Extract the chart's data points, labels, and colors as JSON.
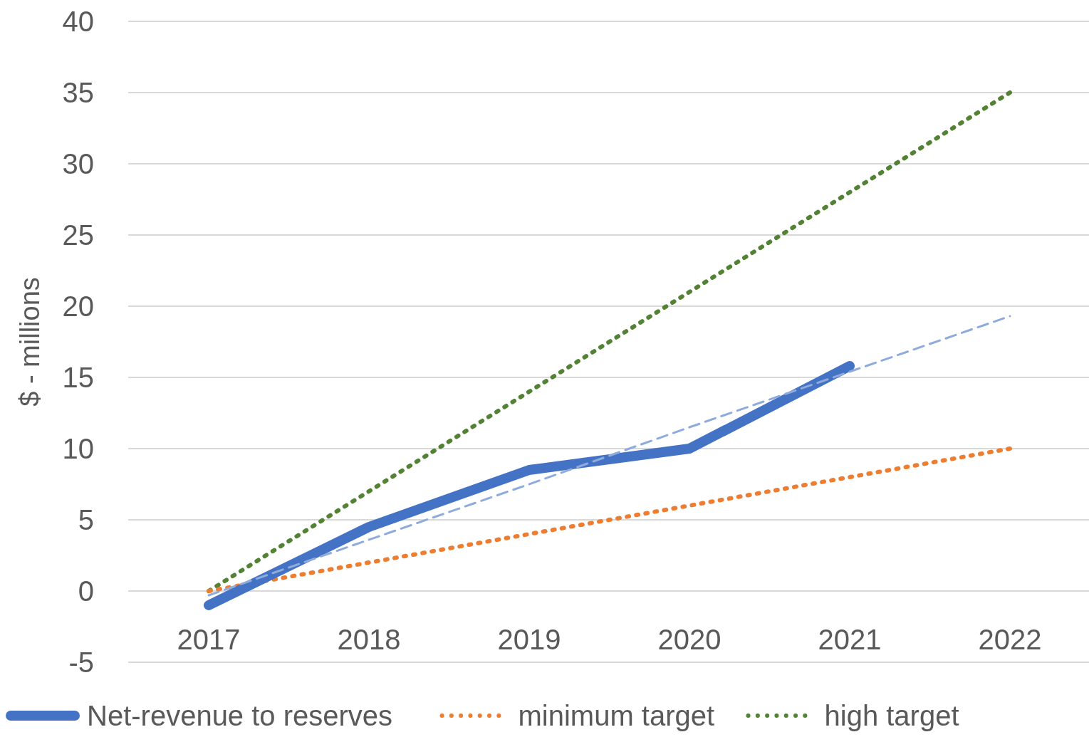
{
  "chart_data": {
    "type": "line",
    "ylabel": "$ - millions",
    "categories": [
      "2017",
      "2018",
      "2019",
      "2020",
      "2021",
      "2022"
    ],
    "series": [
      {
        "name": "Net-revenue to reserves",
        "color": "#4472c4",
        "values": [
          -1,
          4.5,
          8.5,
          10,
          15.8,
          null
        ],
        "line_style": "solid"
      },
      {
        "name": "minimum target",
        "color": "#ed7d31",
        "values": [
          0,
          2,
          4,
          6,
          8,
          10
        ],
        "line_style": "dotted"
      },
      {
        "name": "high target",
        "color": "#548235",
        "values": [
          0,
          7,
          14,
          21,
          28,
          35
        ],
        "line_style": "dotted"
      },
      {
        "type": "line",
        "color": "#8faadc",
        "values": [
          -0.3,
          3.6,
          7.5,
          11.5,
          15.4,
          19.3
        ],
        "line_style": "dashed"
      }
    ],
    "ylim": [
      -5,
      40
    ],
    "yticks": [
      -5,
      0,
      5,
      10,
      15,
      20,
      25,
      30,
      35,
      40
    ],
    "grid": "y",
    "legend": "bottom"
  }
}
